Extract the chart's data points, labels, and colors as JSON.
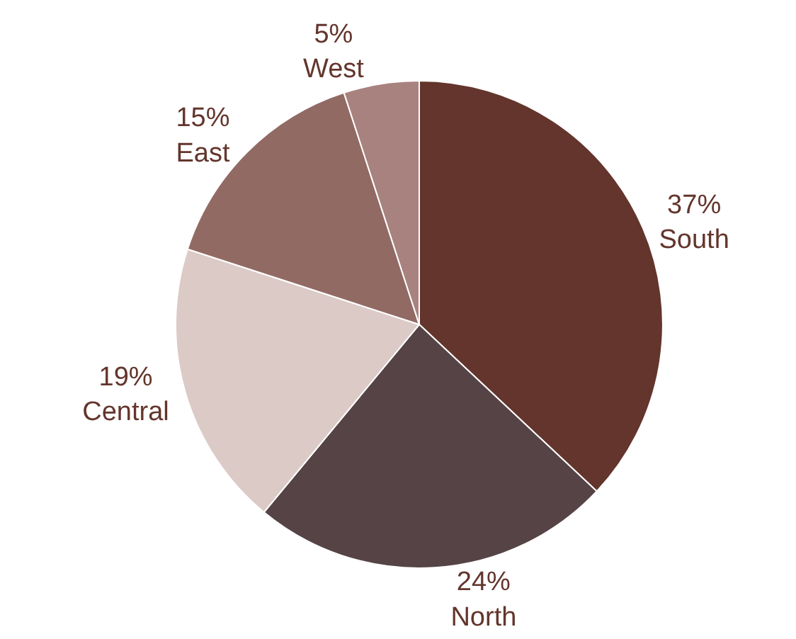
{
  "chart_data": {
    "type": "pie",
    "categories": [
      "South",
      "North",
      "Central",
      "East",
      "West"
    ],
    "values": [
      37,
      24,
      19,
      15,
      5
    ],
    "value_labels": [
      "37%",
      "24%",
      "19%",
      "15%",
      "5%"
    ],
    "colors": [
      "#63352c",
      "#554346",
      "#dccac7",
      "#926a64",
      "#a8827e"
    ],
    "legend": false
  }
}
